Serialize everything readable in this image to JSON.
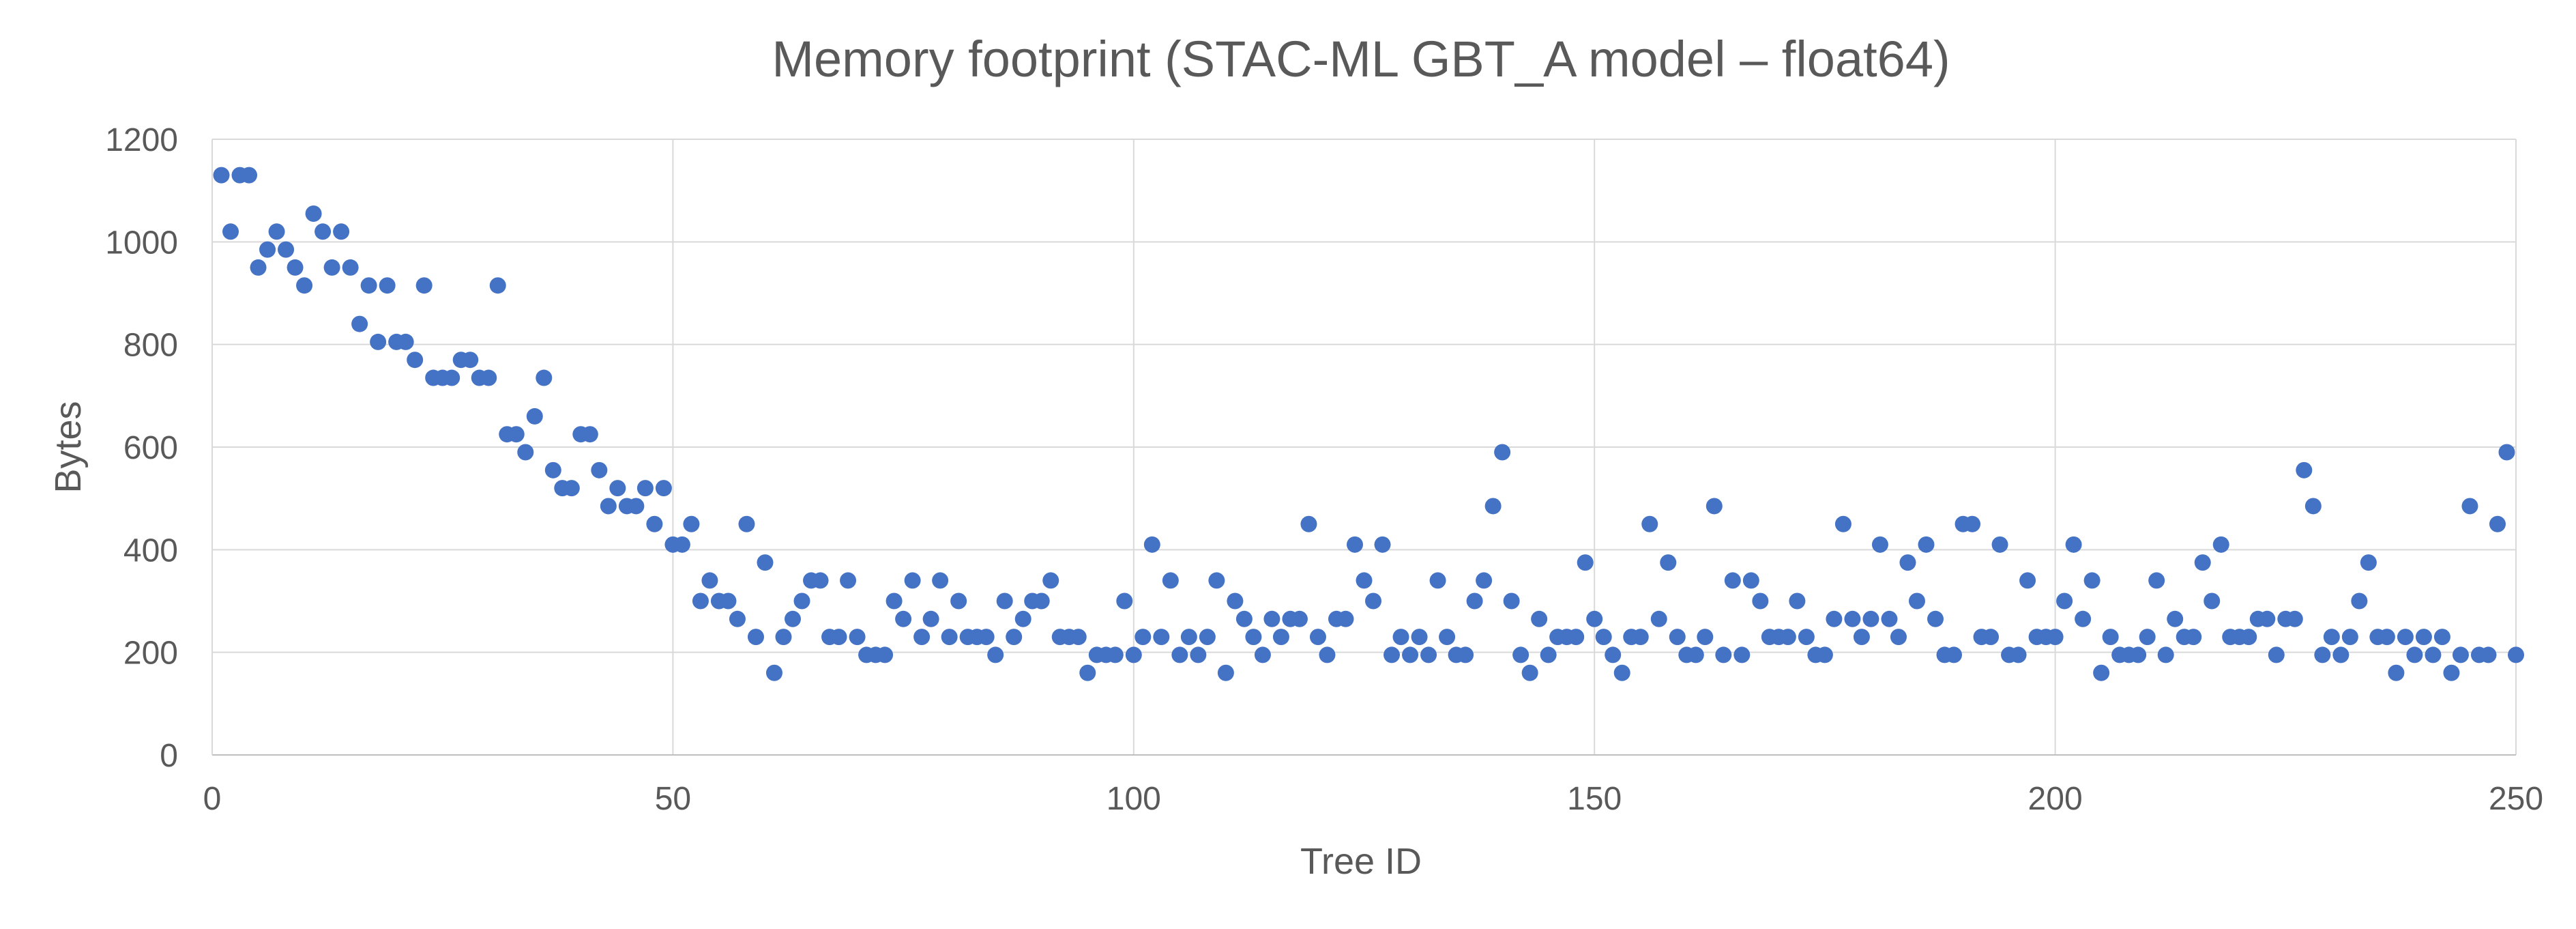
{
  "chart_data": {
    "type": "scatter",
    "title": "Memory footprint (STAC-ML GBT_A model – float64)",
    "xlabel": "Tree ID",
    "ylabel": "Bytes",
    "xlim": [
      0,
      250
    ],
    "ylim": [
      0,
      1200
    ],
    "x_ticks": [
      "0",
      "50",
      "100",
      "150",
      "200",
      "250"
    ],
    "y_ticks": [
      "0",
      "200",
      "400",
      "600",
      "800",
      "1000",
      "1200"
    ],
    "grid": true,
    "legend": "none",
    "marker_color": "#4472C4",
    "series": [
      {
        "x": [
          1,
          2,
          3,
          4,
          5,
          6,
          7,
          8,
          9,
          10,
          11,
          12,
          13,
          14,
          15,
          16,
          17,
          18,
          19,
          20,
          21,
          22,
          23,
          24,
          25,
          26,
          27,
          28,
          29,
          30,
          31,
          32,
          33,
          34,
          35,
          36,
          37,
          38,
          39,
          40,
          41,
          42,
          43,
          44,
          45,
          46,
          47,
          48,
          49,
          50,
          51,
          52,
          53,
          54,
          55,
          56,
          57,
          58,
          59,
          60,
          61,
          62,
          63,
          64,
          65,
          66,
          67,
          68,
          69,
          70,
          71,
          72,
          73,
          74,
          75,
          76,
          77,
          78,
          79,
          80,
          81,
          82,
          83,
          84,
          85,
          86,
          87,
          88,
          89,
          90,
          91,
          92,
          93,
          94,
          95,
          96,
          97,
          98,
          99,
          100,
          101,
          102,
          103,
          104,
          105,
          106,
          107,
          108,
          109,
          110,
          111,
          112,
          113,
          114,
          115,
          116,
          117,
          118,
          119,
          120,
          121,
          122,
          123,
          124,
          125,
          126,
          127,
          128,
          129,
          130,
          131,
          132,
          133,
          134,
          135,
          136,
          137,
          138,
          139,
          140,
          141,
          142,
          143,
          144,
          145,
          146,
          147,
          148,
          149,
          150,
          151,
          152,
          153,
          154,
          155,
          156,
          157,
          158,
          159,
          160,
          161,
          162,
          163,
          164,
          165,
          166,
          167,
          168,
          169,
          170,
          171,
          172,
          173,
          174,
          175,
          176,
          177,
          178,
          179,
          180,
          181,
          182,
          183,
          184,
          185,
          186,
          187,
          188,
          189,
          190,
          191,
          192,
          193,
          194,
          195,
          196,
          197,
          198,
          199,
          200,
          201,
          202,
          203,
          204,
          205,
          206,
          207,
          208,
          209,
          210,
          211,
          212,
          213,
          214,
          215,
          216,
          217,
          218,
          219,
          220,
          221,
          222,
          223,
          224,
          225,
          226,
          227,
          228,
          229,
          230,
          231,
          232,
          233,
          234,
          235,
          236,
          237,
          238,
          239,
          240,
          241,
          242,
          243,
          244,
          245,
          246,
          247,
          248,
          249,
          250
        ],
        "y": [
          1130,
          1020,
          1130,
          1130,
          950,
          985,
          1020,
          985,
          950,
          915,
          1055,
          1020,
          950,
          1020,
          950,
          840,
          915,
          805,
          915,
          805,
          805,
          770,
          915,
          735,
          735,
          735,
          770,
          770,
          735,
          735,
          915,
          625,
          625,
          590,
          660,
          735,
          555,
          520,
          520,
          625,
          625,
          555,
          485,
          520,
          485,
          485,
          520,
          450,
          520,
          410,
          410,
          450,
          300,
          340,
          300,
          300,
          265,
          450,
          230,
          375,
          160,
          230,
          265,
          300,
          340,
          340,
          230,
          230,
          340,
          230,
          195,
          195,
          195,
          300,
          265,
          340,
          230,
          265,
          340,
          230,
          300,
          230,
          230,
          230,
          195,
          300,
          230,
          265,
          300,
          300,
          340,
          230,
          230,
          230,
          160,
          195,
          195,
          195,
          300,
          195,
          230,
          410,
          230,
          340,
          195,
          230,
          195,
          230,
          340,
          160,
          300,
          265,
          230,
          195,
          265,
          230,
          265,
          265,
          450,
          230,
          195,
          265,
          265,
          410,
          340,
          300,
          410,
          195,
          230,
          195,
          230,
          195,
          340,
          230,
          195,
          195,
          300,
          340,
          485,
          590,
          300,
          195,
          160,
          265,
          195,
          230,
          230,
          230,
          375,
          265,
          230,
          195,
          160,
          230,
          230,
          450,
          265,
          375,
          230,
          195,
          195,
          230,
          485,
          195,
          340,
          195,
          340,
          300,
          230,
          230,
          230,
          300,
          230,
          195,
          195,
          265,
          450,
          265,
          230,
          265,
          410,
          265,
          230,
          375,
          300,
          410,
          265,
          195,
          195,
          450,
          450,
          230,
          230,
          410,
          195,
          195,
          340,
          230,
          230,
          230,
          300,
          410,
          265,
          340,
          160,
          230,
          195,
          195,
          195,
          230,
          340,
          195,
          265,
          230,
          230,
          375,
          300,
          410,
          230,
          230,
          230,
          265,
          265,
          195,
          265,
          265,
          555,
          485,
          195,
          230,
          195,
          230,
          300,
          375,
          230,
          230,
          160,
          230,
          195,
          230,
          195,
          230,
          160,
          195,
          485,
          195,
          195,
          450,
          590,
          195
        ]
      }
    ]
  }
}
